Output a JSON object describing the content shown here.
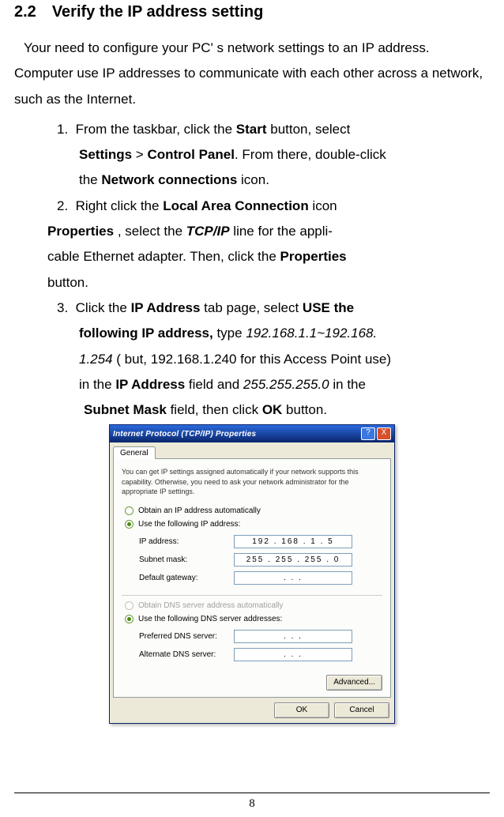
{
  "heading_num": "2.2",
  "heading_text": "Verify the IP address setting",
  "intro": "Your need to configure your PC' s network settings to an IP address. Computer use IP addresses to communicate with each other across a network, such as the Internet.",
  "item1": {
    "num": "1.",
    "a": "From the taskbar, click the ",
    "b": "Start",
    "c": " button, select",
    "d": "Settings",
    "e": " > ",
    "f": "Control Panel",
    "g": ". From there, double-click",
    "h": "the ",
    "i": "Network connections",
    "j": " icon."
  },
  "item2": {
    "num": "2.",
    "a": "Right click the ",
    "b": "Local Area Connection",
    "c": " icon",
    "d": "Properties",
    "e": " , select the ",
    "f": "TCP/IP",
    "g": " line for the appli-",
    "h": "cable Ethernet adapter. Then, click the ",
    "i": "Properties",
    "j": "button."
  },
  "item3": {
    "num": "3.",
    "a": "Click the ",
    "b": "IP Address",
    "c": " tab page, select ",
    "d": "USE the",
    "e": "following IP address,",
    "f": " type ",
    "g": "192.168.1.1~192.168.",
    "h": "1.254",
    "i": " ( but, 192.168.1.240 for this Access Point use)",
    "j": "in the ",
    "k": "IP Address",
    "l": " field and ",
    "m": "255.255.255.0",
    "n": " in the",
    "o": "Subnet Mask",
    "p": " field, then click ",
    "q": "OK",
    "r": " button."
  },
  "dialog": {
    "title": "Internet Protocol (TCP/IP) Properties",
    "help": "?",
    "close": "X",
    "tab": "General",
    "desc": "You can get IP settings assigned automatically if your network supports this capability. Otherwise, you need to ask your network administrator for the appropriate IP settings.",
    "radio_auto_ip": "Obtain an IP address automatically",
    "radio_use_ip": "Use the following IP address:",
    "ip_label": "IP address:",
    "ip_value": "192 . 168 .  1  .  5",
    "subnet_label": "Subnet mask:",
    "subnet_value": "255 . 255 . 255 .  0",
    "gateway_label": "Default gateway:",
    "gateway_value": ".       .       .",
    "radio_auto_dns": "Obtain DNS server address automatically",
    "radio_use_dns": "Use the following DNS server addresses:",
    "pref_dns_label": "Preferred DNS server:",
    "pref_dns_value": ".       .       .",
    "alt_dns_label": "Alternate DNS server:",
    "alt_dns_value": ".       .       .",
    "advanced": "Advanced...",
    "ok": "OK",
    "cancel": "Cancel"
  },
  "page_number": "8"
}
